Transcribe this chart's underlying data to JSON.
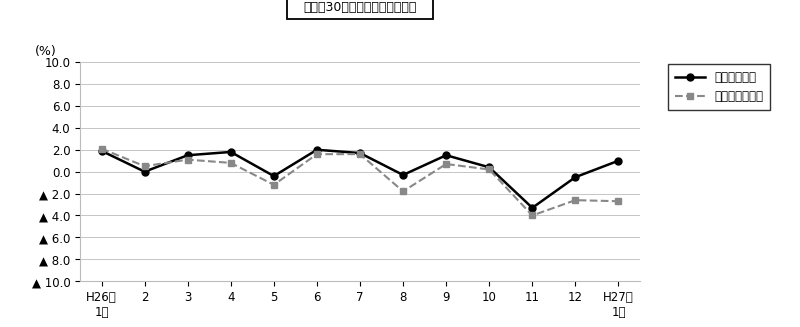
{
  "x_labels": [
    "H26年\n1月",
    "2",
    "3",
    "4",
    "5",
    "6",
    "7",
    "8",
    "9",
    "10",
    "11",
    "12",
    "H27年\n1月"
  ],
  "total_labor": [
    1.9,
    0.0,
    1.5,
    1.8,
    -0.4,
    2.0,
    1.7,
    -0.3,
    1.5,
    0.4,
    -3.3,
    -0.5,
    1.0
  ],
  "scheduled_labor": [
    2.1,
    0.5,
    1.1,
    0.8,
    -1.2,
    1.6,
    1.6,
    -1.8,
    0.7,
    0.2,
    -4.0,
    -2.6,
    -2.7
  ],
  "ylim": [
    -10.0,
    10.0
  ],
  "ytick_vals": [
    10.0,
    8.0,
    6.0,
    4.0,
    2.0,
    0.0,
    -2.0,
    -4.0,
    -6.0,
    -8.0,
    -10.0
  ],
  "ytick_labels_pos": [
    "10.0",
    "8.0",
    "6.0",
    "4.0",
    "2.0",
    "0.0"
  ],
  "ytick_labels_neg": [
    "▲ 2.0",
    "▲ 4.0",
    "▲ 6.0",
    "▲ 8.0",
    "▲ 10.0"
  ],
  "ylabel": "(%)",
  "title_line2": "－規樨30人以上－　調査産業計",
  "legend_total": "総実労働時間",
  "legend_scheduled": "所定内労働時間",
  "line_color_total": "#000000",
  "line_color_scheduled": "#888888",
  "bg_color": "#ffffff",
  "grid_color": "#bbbbbb"
}
